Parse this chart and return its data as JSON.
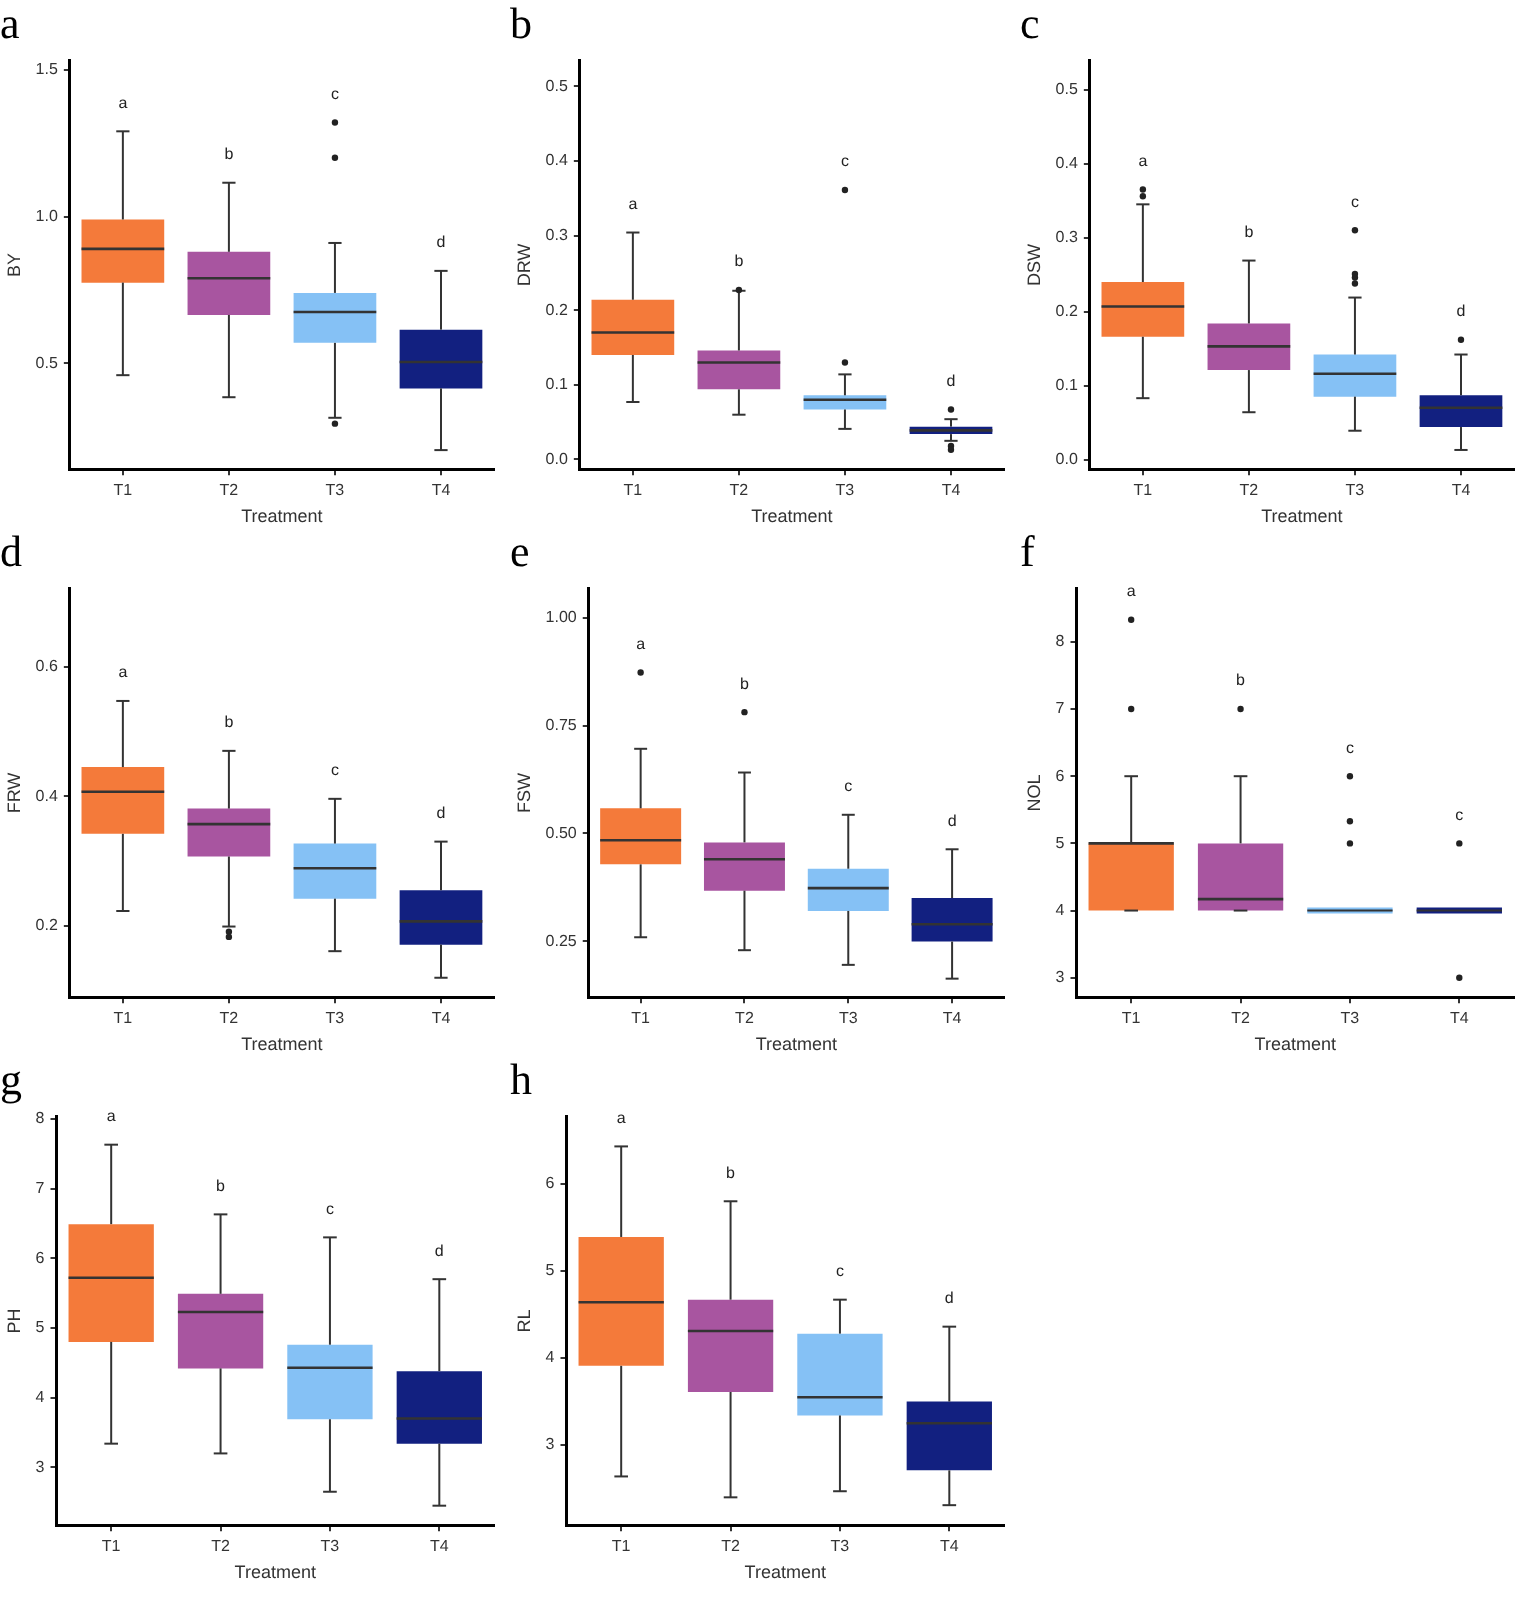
{
  "chart_data": [
    {
      "type": "box",
      "title": "a",
      "xlabel": "Treatment",
      "ylabel": "BY",
      "categories": [
        "T1",
        "T2",
        "T3",
        "T4"
      ],
      "colors": [
        "#f47a3a",
        "#a855a0",
        "#85c1f5",
        "#122080"
      ],
      "ylim": [
        0.14,
        1.53
      ],
      "yticks": [
        0.5,
        {
          "value": 1,
          "label": "1.0"
        },
        1.5
      ],
      "grid": false,
      "legend": false,
      "boxes": [
        {
          "low": 0.46,
          "q1": 0.775,
          "median": 0.89,
          "q3": 0.99,
          "high": 1.29
        },
        {
          "low": 0.385,
          "q1": 0.665,
          "median": 0.79,
          "q3": 0.88,
          "high": 1.115
        },
        {
          "low": 0.315,
          "q1": 0.57,
          "median": 0.675,
          "q3": 0.74,
          "high": 0.91,
          "outliers": [
            1.32,
            1.2,
            0.295
          ]
        },
        {
          "low": 0.205,
          "q1": 0.415,
          "median": 0.505,
          "q3": 0.615,
          "high": 0.815
        }
      ],
      "annotations": [
        "a",
        "b",
        "c",
        "d"
      ]
    },
    {
      "type": "box",
      "title": "b",
      "xlabel": "Treatment",
      "ylabel": "DRW",
      "categories": [
        "T1",
        "T2",
        "T3",
        "T4"
      ],
      "colors": [
        "#f47a3a",
        "#a855a0",
        "#85c1f5",
        "#122080"
      ],
      "ylim": [
        -0.013,
        0.534
      ],
      "yticks": [
        {
          "value": 0,
          "label": "0.0"
        },
        0.1,
        0.2,
        0.3,
        0.4,
        0.5
      ],
      "grid": false,
      "legend": false,
      "boxes": [
        {
          "low": 0.077,
          "q1": 0.14,
          "median": 0.17,
          "q3": 0.214,
          "high": 0.304
        },
        {
          "low": 0.06,
          "q1": 0.094,
          "median": 0.13,
          "q3": 0.146,
          "high": 0.226,
          "outliers": [
            0.227
          ]
        },
        {
          "low": 0.041,
          "q1": 0.067,
          "median": 0.08,
          "q3": 0.086,
          "high": 0.114,
          "outliers": [
            0.361,
            0.13
          ]
        },
        {
          "low": 0.025,
          "q1": 0.034,
          "median": 0.039,
          "q3": 0.044,
          "high": 0.054,
          "outliers": [
            0.067,
            0.018,
            0.013
          ]
        }
      ],
      "annotations": [
        "a",
        "b",
        "c",
        "d"
      ]
    },
    {
      "type": "box",
      "title": "c",
      "xlabel": "Treatment",
      "ylabel": "DSW",
      "categories": [
        "T1",
        "T2",
        "T3",
        "T4"
      ],
      "colors": [
        "#f47a3a",
        "#a855a0",
        "#85c1f5",
        "#122080"
      ],
      "ylim": [
        -0.013,
        0.539
      ],
      "yticks": [
        {
          "value": 0,
          "label": "0.0"
        },
        0.1,
        0.2,
        0.3,
        0.4,
        0.5
      ],
      "grid": false,
      "legend": false,
      "boxes": [
        {
          "low": 0.083,
          "q1": 0.166,
          "median": 0.207,
          "q3": 0.24,
          "high": 0.345,
          "outliers": [
            0.365,
            0.356
          ]
        },
        {
          "low": 0.064,
          "q1": 0.121,
          "median": 0.153,
          "q3": 0.184,
          "high": 0.269
        },
        {
          "low": 0.039,
          "q1": 0.085,
          "median": 0.116,
          "q3": 0.142,
          "high": 0.219,
          "outliers": [
            0.31,
            0.251,
            0.246,
            0.238
          ]
        },
        {
          "low": 0.013,
          "q1": 0.044,
          "median": 0.07,
          "q3": 0.087,
          "high": 0.142,
          "outliers": [
            0.162
          ]
        }
      ],
      "annotations": [
        "a",
        "b",
        "c",
        "d"
      ]
    },
    {
      "type": "box",
      "title": "d",
      "xlabel": "Treatment",
      "ylabel": "FRW",
      "categories": [
        "T1",
        "T2",
        "T3",
        "T4"
      ],
      "colors": [
        "#f47a3a",
        "#a855a0",
        "#85c1f5",
        "#122080"
      ],
      "ylim": [
        0.09,
        0.72
      ],
      "yticks": [
        0.2,
        0.4,
        0.6
      ],
      "grid": false,
      "legend": false,
      "boxes": [
        {
          "low": 0.223,
          "q1": 0.342,
          "median": 0.407,
          "q3": 0.445,
          "high": 0.547
        },
        {
          "low": 0.199,
          "q1": 0.307,
          "median": 0.357,
          "q3": 0.381,
          "high": 0.47,
          "outliers": [
            0.191,
            0.183
          ]
        },
        {
          "low": 0.161,
          "q1": 0.242,
          "median": 0.289,
          "q3": 0.327,
          "high": 0.396
        },
        {
          "low": 0.12,
          "q1": 0.171,
          "median": 0.207,
          "q3": 0.255,
          "high": 0.33
        }
      ],
      "annotations": [
        "a",
        "b",
        "c",
        "d"
      ]
    },
    {
      "type": "box",
      "title": "e",
      "xlabel": "Treatment",
      "ylabel": "FSW",
      "categories": [
        "T1",
        "T2",
        "T3",
        "T4"
      ],
      "colors": [
        "#f47a3a",
        "#a855a0",
        "#85c1f5",
        "#122080"
      ],
      "ylim": [
        0.12,
        1.067
      ],
      "yticks": [
        {
          "value": 0.25,
          "label": "0.25"
        },
        {
          "value": 0.5,
          "label": "0.50"
        },
        {
          "value": 0.75,
          "label": "0.75"
        },
        {
          "value": 1,
          "label": "1.00"
        }
      ],
      "grid": false,
      "legend": false,
      "boxes": [
        {
          "low": 0.259,
          "q1": 0.428,
          "median": 0.484,
          "q3": 0.558,
          "high": 0.696,
          "outliers": [
            0.873
          ]
        },
        {
          "low": 0.229,
          "q1": 0.367,
          "median": 0.44,
          "q3": 0.479,
          "high": 0.641,
          "outliers": [
            0.781
          ]
        },
        {
          "low": 0.195,
          "q1": 0.32,
          "median": 0.373,
          "q3": 0.418,
          "high": 0.543
        },
        {
          "low": 0.163,
          "q1": 0.249,
          "median": 0.289,
          "q3": 0.35,
          "high": 0.463
        }
      ],
      "annotations": [
        "a",
        "b",
        "c",
        "d"
      ]
    },
    {
      "type": "box",
      "title": "f",
      "xlabel": "Treatment",
      "ylabel": "NOL",
      "categories": [
        "T1",
        "T2",
        "T3",
        "T4"
      ],
      "colors": [
        "#f47a3a",
        "#a855a0",
        "#85c1f5",
        "#122080"
      ],
      "ylim": [
        2.71,
        8.79
      ],
      "yticks": [
        3,
        4,
        5,
        6,
        7,
        8
      ],
      "grid": false,
      "legend": false,
      "boxes": [
        {
          "low": 4,
          "q1": 4,
          "median": 5,
          "q3": 5,
          "high": 6,
          "outliers": [
            8.33,
            7
          ]
        },
        {
          "low": 4,
          "q1": 4,
          "median": 4.17,
          "q3": 5,
          "high": 6,
          "outliers": [
            7
          ]
        },
        {
          "low": 4,
          "q1": 4,
          "median": 4,
          "q3": 4,
          "high": 4,
          "outliers": [
            6,
            5.33,
            5
          ]
        },
        {
          "low": 4,
          "q1": 4,
          "median": 4,
          "q3": 4,
          "high": 4,
          "outliers": [
            5,
            3
          ]
        }
      ],
      "annotations": [
        "a",
        "b",
        "c",
        "c"
      ]
    },
    {
      "type": "box",
      "title": "g",
      "xlabel": "Treatment",
      "ylabel": "PH",
      "categories": [
        "T1",
        "T2",
        "T3",
        "T4"
      ],
      "colors": [
        "#f47a3a",
        "#a855a0",
        "#85c1f5",
        "#122080"
      ],
      "ylim": [
        2.17,
        8.03
      ],
      "yticks": [
        3,
        4,
        5,
        6,
        7,
        8
      ],
      "grid": false,
      "legend": false,
      "boxes": [
        {
          "low": 3.34,
          "q1": 4.8,
          "median": 5.72,
          "q3": 6.49,
          "high": 7.63
        },
        {
          "low": 3.2,
          "q1": 4.42,
          "median": 5.23,
          "q3": 5.49,
          "high": 6.63
        },
        {
          "low": 2.65,
          "q1": 3.69,
          "median": 4.43,
          "q3": 4.76,
          "high": 6.3
        },
        {
          "low": 2.45,
          "q1": 3.34,
          "median": 3.7,
          "q3": 4.38,
          "high": 5.7
        }
      ],
      "annotations": [
        "a",
        "b",
        "c",
        "d"
      ]
    },
    {
      "type": "box",
      "title": "h",
      "xlabel": "Treatment",
      "ylabel": "RL",
      "categories": [
        "T1",
        "T2",
        "T3",
        "T4"
      ],
      "colors": [
        "#f47a3a",
        "#a855a0",
        "#85c1f5",
        "#122080"
      ],
      "ylim": [
        2.08,
        6.77
      ],
      "yticks": [
        3,
        4,
        5,
        6
      ],
      "grid": false,
      "legend": false,
      "boxes": [
        {
          "low": 2.64,
          "q1": 3.91,
          "median": 4.64,
          "q3": 5.39,
          "high": 6.43
        },
        {
          "low": 2.4,
          "q1": 3.61,
          "median": 4.31,
          "q3": 4.67,
          "high": 5.8
        },
        {
          "low": 2.47,
          "q1": 3.34,
          "median": 3.55,
          "q3": 4.28,
          "high": 4.67
        },
        {
          "low": 2.31,
          "q1": 2.71,
          "median": 3.25,
          "q3": 3.5,
          "high": 4.36
        }
      ],
      "annotations": [
        "a",
        "b",
        "c",
        "d"
      ]
    }
  ]
}
